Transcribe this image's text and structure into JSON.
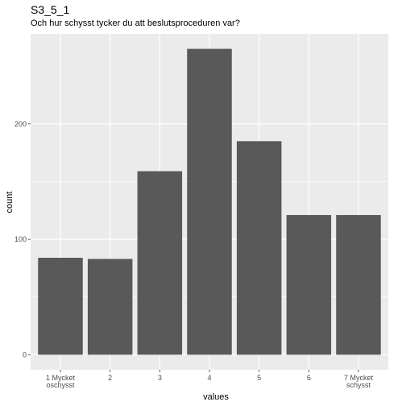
{
  "chart_data": {
    "type": "bar",
    "title": "S3_5_1",
    "subtitle": "Och hur schysst tycker du att beslutsproceduren var?",
    "xlabel": "values",
    "ylabel": "count",
    "categories": [
      [
        "1 Mycket",
        "oschysst"
      ],
      [
        "2"
      ],
      [
        "3"
      ],
      [
        "4"
      ],
      [
        "5"
      ],
      [
        "6"
      ],
      [
        "7 Mycket",
        "schysst"
      ]
    ],
    "values": [
      84,
      83,
      159,
      265,
      185,
      121,
      121
    ],
    "yticks": [
      0,
      100,
      200
    ],
    "ylim": [
      -13,
      278
    ],
    "grid": true,
    "colors": {
      "bar": "#595959",
      "panel": "#ebebeb",
      "grid": "#ffffff"
    }
  }
}
